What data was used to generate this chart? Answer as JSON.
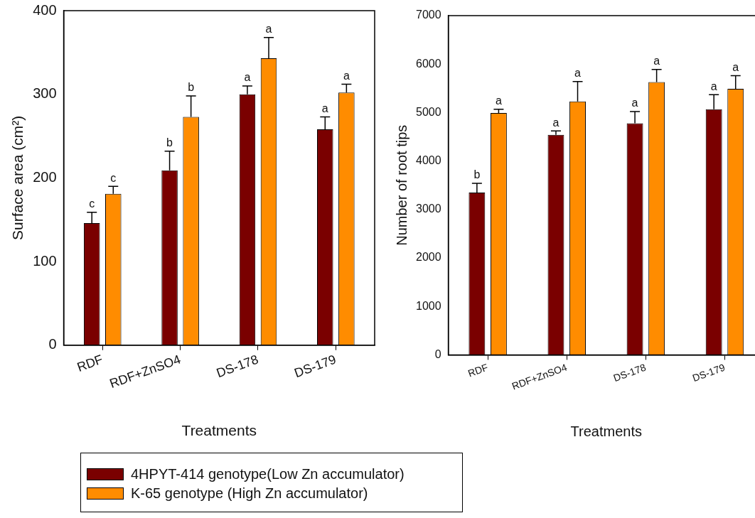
{
  "chart_data": [
    {
      "type": "bar",
      "xlabel": "Treatments",
      "ylabel": "Surface area (cm²)",
      "categories": [
        "RDF",
        "RDF+ZnSO4",
        "DS-178",
        "DS-179"
      ],
      "ylim": [
        0,
        400
      ],
      "yticks": [
        0,
        100,
        200,
        300,
        400
      ],
      "legend": "bottom",
      "series": [
        {
          "name": "4HPYT-414 genotype(Low Zn accumulator)",
          "color": "#7a0000",
          "values": [
            146,
            209,
            300,
            258
          ],
          "errors": [
            [
              146,
              159
            ],
            [
              209,
              232
            ],
            [
              300,
              310
            ],
            [
              258,
              273
            ]
          ],
          "value_labels": [
            "c",
            "b",
            "a",
            "a"
          ]
        },
        {
          "name": "K-65 genotype (High Zn accumulator)",
          "color": "#ff8c00",
          "values": [
            181,
            273,
            343,
            302
          ],
          "errors": [
            [
              181,
              190
            ],
            [
              273,
              298
            ],
            [
              343,
              368
            ],
            [
              302,
              312
            ]
          ],
          "value_labels": [
            "c",
            "b",
            "a",
            "a"
          ]
        }
      ]
    },
    {
      "type": "bar",
      "xlabel": "Treatments",
      "ylabel": "Number of root tips",
      "categories": [
        "RDF",
        "RDF+ZnSO4",
        "DS-178",
        "DS-179"
      ],
      "ylim": [
        0,
        7000
      ],
      "yticks": [
        0,
        1000,
        2000,
        3000,
        4000,
        5000,
        6000,
        7000
      ],
      "series": [
        {
          "color": "#7a0000",
          "values": [
            3350,
            4540,
            4780,
            5070
          ],
          "errors": [
            [
              3350,
              3540
            ],
            [
              4540,
              4620
            ],
            [
              4780,
              5020
            ],
            [
              5070,
              5370
            ]
          ],
          "value_labels": [
            "b",
            "a",
            "a",
            "a"
          ]
        },
        {
          "color": "#ff8c00",
          "values": [
            4990,
            5230,
            5630,
            5490
          ],
          "errors": [
            [
              4990,
              5070
            ],
            [
              5230,
              5640
            ],
            [
              5630,
              5890
            ],
            [
              5490,
              5760
            ]
          ],
          "value_labels": [
            "a",
            "a",
            "a",
            "a"
          ]
        }
      ]
    }
  ]
}
